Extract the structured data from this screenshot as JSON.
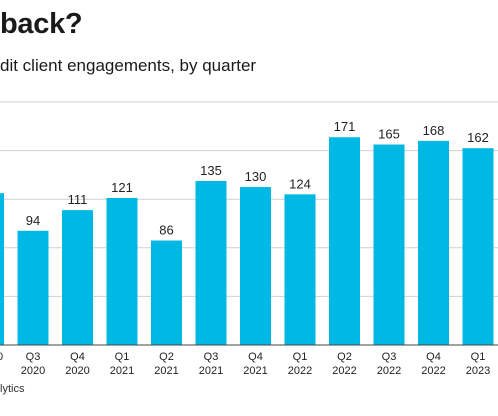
{
  "title": "back?",
  "subtitle": "dit client engagements, by quarter",
  "source": "lytics",
  "colors": {
    "bar": "#00b8e4",
    "grid": "#cfcfcf",
    "axis": "#444444"
  },
  "chart_data": {
    "type": "bar",
    "title": "back?",
    "subtitle": "dit client engagements, by quarter",
    "xlabel": "",
    "ylabel": "",
    "ylim": [
      0,
      200
    ],
    "grid": true,
    "categories": [
      [
        "Q3",
        "2020"
      ],
      [
        "Q4",
        "2020"
      ],
      [
        "Q1",
        "2021"
      ],
      [
        "Q2",
        "2021"
      ],
      [
        "Q3",
        "2021"
      ],
      [
        "Q4",
        "2021"
      ],
      [
        "Q1",
        "2022"
      ],
      [
        "Q2",
        "2022"
      ],
      [
        "Q3",
        "2022"
      ],
      [
        "Q4",
        "2022"
      ],
      [
        "Q1",
        "2023"
      ]
    ],
    "values": [
      94,
      111,
      121,
      86,
      135,
      130,
      124,
      171,
      165,
      168,
      162
    ],
    "partial": {
      "tick_label": "0",
      "value": 125
    }
  }
}
